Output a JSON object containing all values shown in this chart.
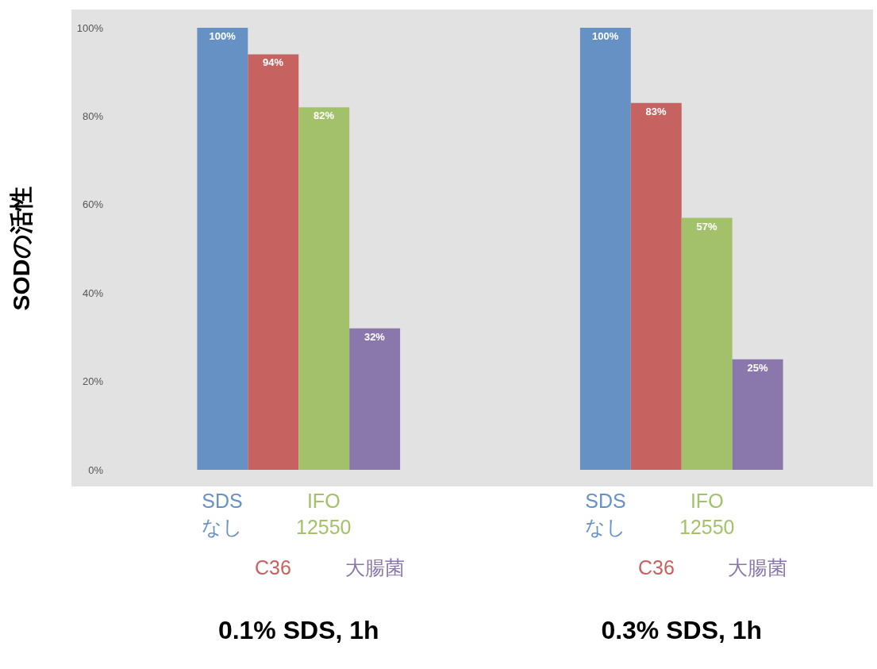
{
  "chart_data": {
    "type": "bar",
    "ylabel": "SODの活性",
    "categories": [
      "0.1% SDS, 1h",
      "0.3% SDS, 1h"
    ],
    "series": [
      {
        "name": "SDS\nなし",
        "color": "#6691c5",
        "values": [
          100,
          100
        ],
        "value_labels": [
          "100%",
          "100%"
        ]
      },
      {
        "name": "C36",
        "color": "#c6625f",
        "values": [
          94,
          83
        ],
        "value_labels": [
          "94%",
          "83%"
        ]
      },
      {
        "name": "IFO\n12550",
        "color": "#a3c16b",
        "values": [
          82,
          57
        ],
        "value_labels": [
          "82%",
          "57%"
        ]
      },
      {
        "name": "大腸菌",
        "color": "#8a78ad",
        "values": [
          32,
          25
        ],
        "value_labels": [
          "32%",
          "25%"
        ]
      }
    ],
    "ylim": [
      0,
      100
    ],
    "yticks": [
      {
        "value": 0,
        "label": "0%"
      },
      {
        "value": 20,
        "label": "20%"
      },
      {
        "value": 40,
        "label": "40%"
      },
      {
        "value": 60,
        "label": "60%"
      },
      {
        "value": 80,
        "label": "80%"
      },
      {
        "value": 100,
        "label": "100%"
      }
    ],
    "grid": false,
    "legend": false
  }
}
